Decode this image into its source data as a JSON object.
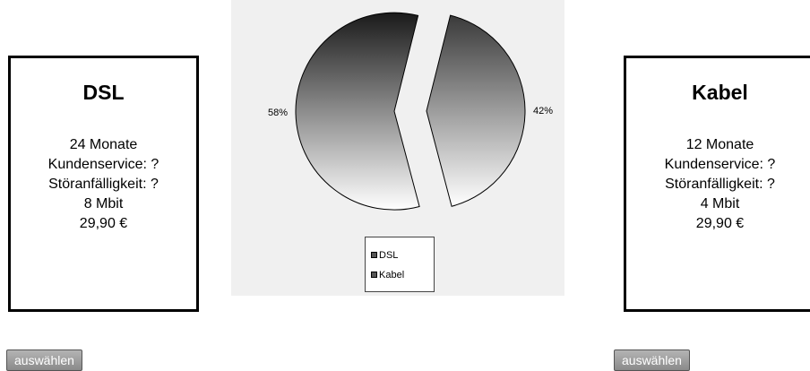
{
  "dsl_card": {
    "title": "DSL",
    "lines": [
      "24 Monate",
      "Kundenservice: ?",
      "Störanfälligkeit: ?",
      "8 Mbit",
      "29,90 €"
    ],
    "button_label": "auswählen"
  },
  "kabel_card": {
    "title": "Kabel",
    "lines": [
      "12 Monate",
      "Kundenservice: ?",
      "Störanfälligkeit: ?",
      "4 Mbit",
      "29,90 €"
    ],
    "button_label": "auswählen"
  },
  "chart_data": {
    "type": "pie",
    "categories": [
      "DSL",
      "Kabel"
    ],
    "values": [
      58,
      42
    ],
    "data_labels": [
      "58%",
      "42%"
    ],
    "title": "",
    "legend": {
      "placement": "bottom",
      "entries": [
        "DSL",
        "Kabel"
      ]
    },
    "exploded": true,
    "colors": {
      "dsl_gradient": [
        "#1a1a1a",
        "#ffffff"
      ],
      "kabel_gradient": [
        "#3a3a3a",
        "#ffffff"
      ],
      "background": "#f0f0f0",
      "legend_swatch": "#555555"
    }
  }
}
